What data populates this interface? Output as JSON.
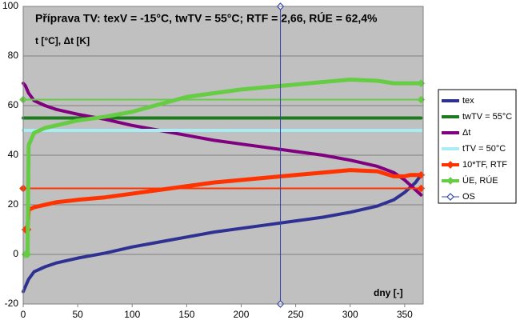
{
  "chart_data": {
    "type": "line",
    "title": "Příprava TV: texV = -15°C, twTV = 55°C; RTF = 2,66, RÚE = 62,4%",
    "y_label": "t [°C], Δt [K]",
    "x_label": "dny [-]",
    "x": [
      0,
      2,
      4,
      5,
      10,
      20,
      30,
      50,
      75,
      100,
      125,
      150,
      175,
      200,
      225,
      250,
      275,
      300,
      325,
      340,
      350,
      355,
      360,
      365
    ],
    "xlim": [
      0,
      367
    ],
    "ylim": [
      -20,
      100
    ],
    "xticks": [
      0,
      50,
      100,
      150,
      200,
      250,
      300,
      350
    ],
    "yticks": [
      -20,
      0,
      20,
      40,
      60,
      80,
      100
    ],
    "grid": true,
    "series": [
      {
        "name": "tex",
        "color": "#2e3192",
        "values": [
          -15,
          -13,
          -11,
          -10,
          -7,
          -5,
          -3.5,
          -1.5,
          0.5,
          3,
          5,
          7,
          9,
          10.5,
          12,
          13.5,
          15,
          17,
          19.5,
          22,
          25,
          27,
          29,
          32
        ]
      },
      {
        "name": "twTV = 55°C",
        "color": "#1e7a1e",
        "values": [
          55,
          55,
          55,
          55,
          55,
          55,
          55,
          55,
          55,
          55,
          55,
          55,
          55,
          55,
          55,
          55,
          55,
          55,
          55,
          55,
          55,
          55,
          55,
          55
        ]
      },
      {
        "name": "Δt",
        "color": "#800080",
        "values": [
          69,
          68,
          66,
          65,
          62,
          60,
          58.5,
          56.5,
          54.5,
          52,
          50,
          48,
          46,
          44.5,
          43,
          41.5,
          40,
          38,
          35.5,
          33,
          30,
          28,
          26,
          24
        ]
      },
      {
        "name": "tTV = 50°C",
        "color": "#a8ecf4",
        "values": [
          50,
          50,
          50,
          50,
          50,
          50,
          50,
          50,
          50,
          50,
          50,
          50,
          50,
          50,
          50,
          50,
          50,
          50,
          50,
          50,
          50,
          50,
          50,
          50
        ]
      },
      {
        "name": "10*TF, RTF",
        "color": "#ff3300",
        "marker": "diamond",
        "level": 26.6,
        "values": [
          null,
          10,
          10,
          18,
          19,
          20,
          21,
          22,
          23,
          24.5,
          26,
          27.5,
          29,
          30,
          31,
          32,
          33,
          34,
          33.5,
          31.5,
          31.5,
          32,
          32,
          32
        ]
      },
      {
        "name": "ÚE, RÚE",
        "color": "#66cc44",
        "marker": "diamond",
        "level": 62.4,
        "values": [
          null,
          0,
          0,
          44,
          49,
          51,
          52,
          54,
          55.5,
          57.5,
          60.5,
          63.5,
          65,
          66.5,
          67.5,
          68.5,
          69.5,
          70.5,
          70,
          69,
          69,
          69,
          69,
          69
        ]
      },
      {
        "name": "OS",
        "color": "#3344aa",
        "marker": "diamond",
        "x": [
          236,
          236
        ],
        "values": [
          -20,
          100
        ]
      }
    ]
  }
}
